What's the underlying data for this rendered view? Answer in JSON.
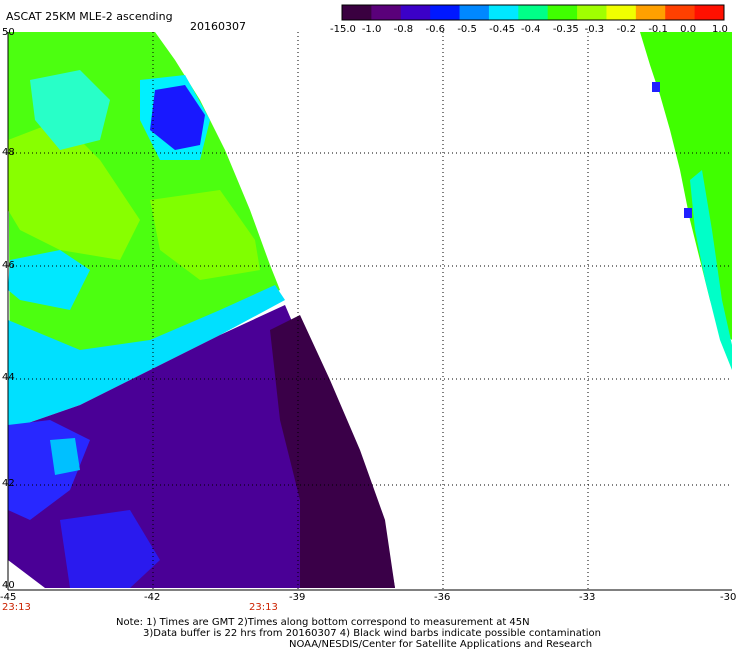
{
  "header": {
    "title": "ASCAT 25KM MLE-2 ascending",
    "date": "20160307"
  },
  "colorbar": {
    "labels": [
      "-15.0",
      "-1.0",
      "-0.8",
      "-0.6",
      "-0.5",
      "-0.45",
      "-0.4",
      "-0.35",
      "-0.3",
      "-0.2",
      "-0.1",
      "0.0",
      "1.0"
    ],
    "colors": [
      "#3a0040",
      "#5a007a",
      "#3b00c8",
      "#0018ff",
      "#0088ff",
      "#00e8ff",
      "#00ff88",
      "#40ff00",
      "#a0ff00",
      "#f0ff00",
      "#ffa000",
      "#ff4000",
      "#ff1000"
    ]
  },
  "map": {
    "lat_labels": [
      "50",
      "48",
      "46",
      "44",
      "42",
      "40"
    ],
    "lon_labels": [
      "-45",
      "-42",
      "-39",
      "-36",
      "-33",
      "-30"
    ],
    "time_labels": [
      "23:13",
      "23:13"
    ],
    "region_colors": {
      "green": "#3cff00",
      "lime": "#90ff00",
      "cyan": "#00f0ff",
      "purple": "#4a0090",
      "dark_purple": "#3a0048",
      "blue": "#2020ff"
    }
  },
  "notes": {
    "line1": "Note: 1) Times are GMT 2)Times along bottom correspond to measurement at 45N",
    "line2": "3)Data buffer is 22 hrs from 20160307 4) Black wind barbs indicate possible contamination",
    "line3": "NOAA/NESDIS/Center for Satellite Applications and Research"
  }
}
